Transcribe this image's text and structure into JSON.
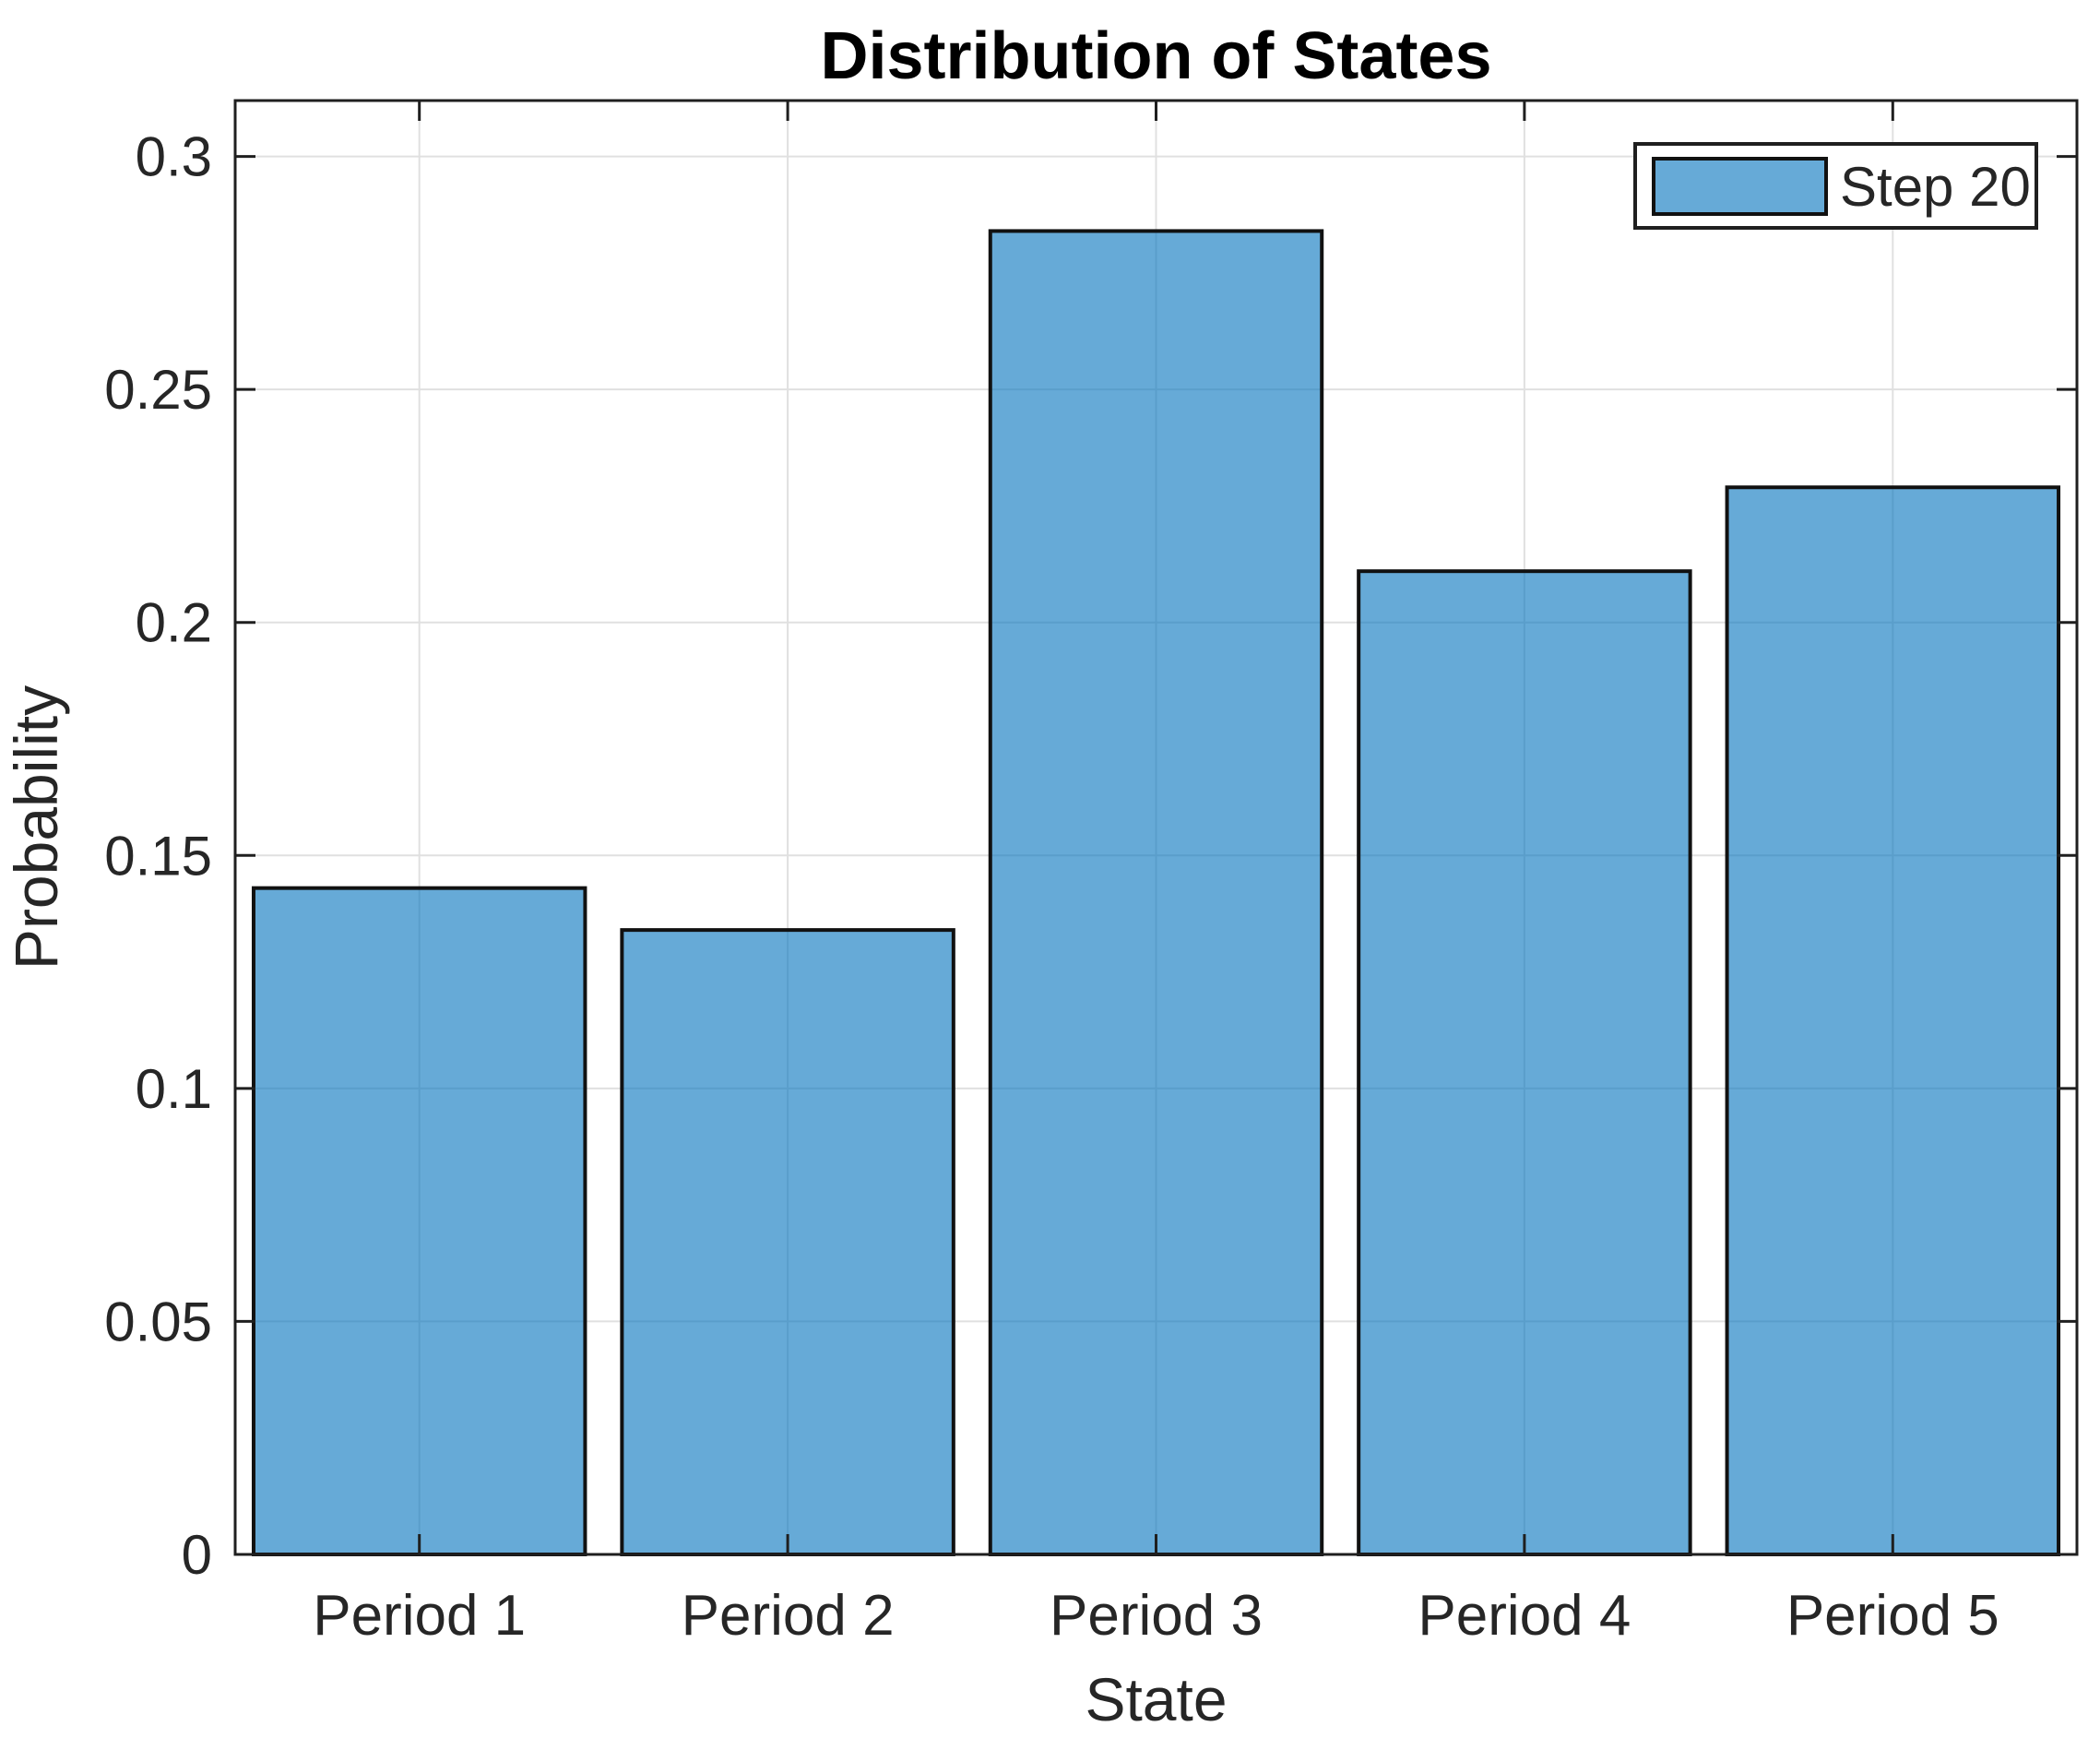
{
  "figure": {
    "background": "#ffffff"
  },
  "chart_data": {
    "type": "bar",
    "title": "Distribution of States",
    "xlabel": "State",
    "ylabel": "Probability",
    "categories": [
      "Period 1",
      "Period 2",
      "Period 3",
      "Period 4",
      "Period 5"
    ],
    "series": [
      {
        "name": "Step 20",
        "values": [
          0.143,
          0.134,
          0.284,
          0.211,
          0.229
        ]
      }
    ],
    "ylim": [
      0,
      0.312
    ],
    "yticks": [
      0,
      0.05,
      0.1,
      0.15,
      0.2,
      0.25,
      0.3
    ],
    "ytick_labels": [
      "0",
      "0.05",
      "0.1",
      "0.15",
      "0.2",
      "0.25",
      "0.3"
    ],
    "grid": true,
    "box": true,
    "tick_direction": "in",
    "legend": {
      "position": "top-right",
      "entries": [
        "Step 20"
      ]
    },
    "colors": {
      "bar_fill": "#0072BD",
      "bar_fill_opacity": "0.6",
      "bar_edge": "#111111",
      "grid": "#e0e0e0",
      "axis": "#1f1f1f",
      "tick_label": "#262626",
      "title": "#000000",
      "legend_border": "#1f1f1f",
      "legend_bg": "#ffffff"
    }
  }
}
